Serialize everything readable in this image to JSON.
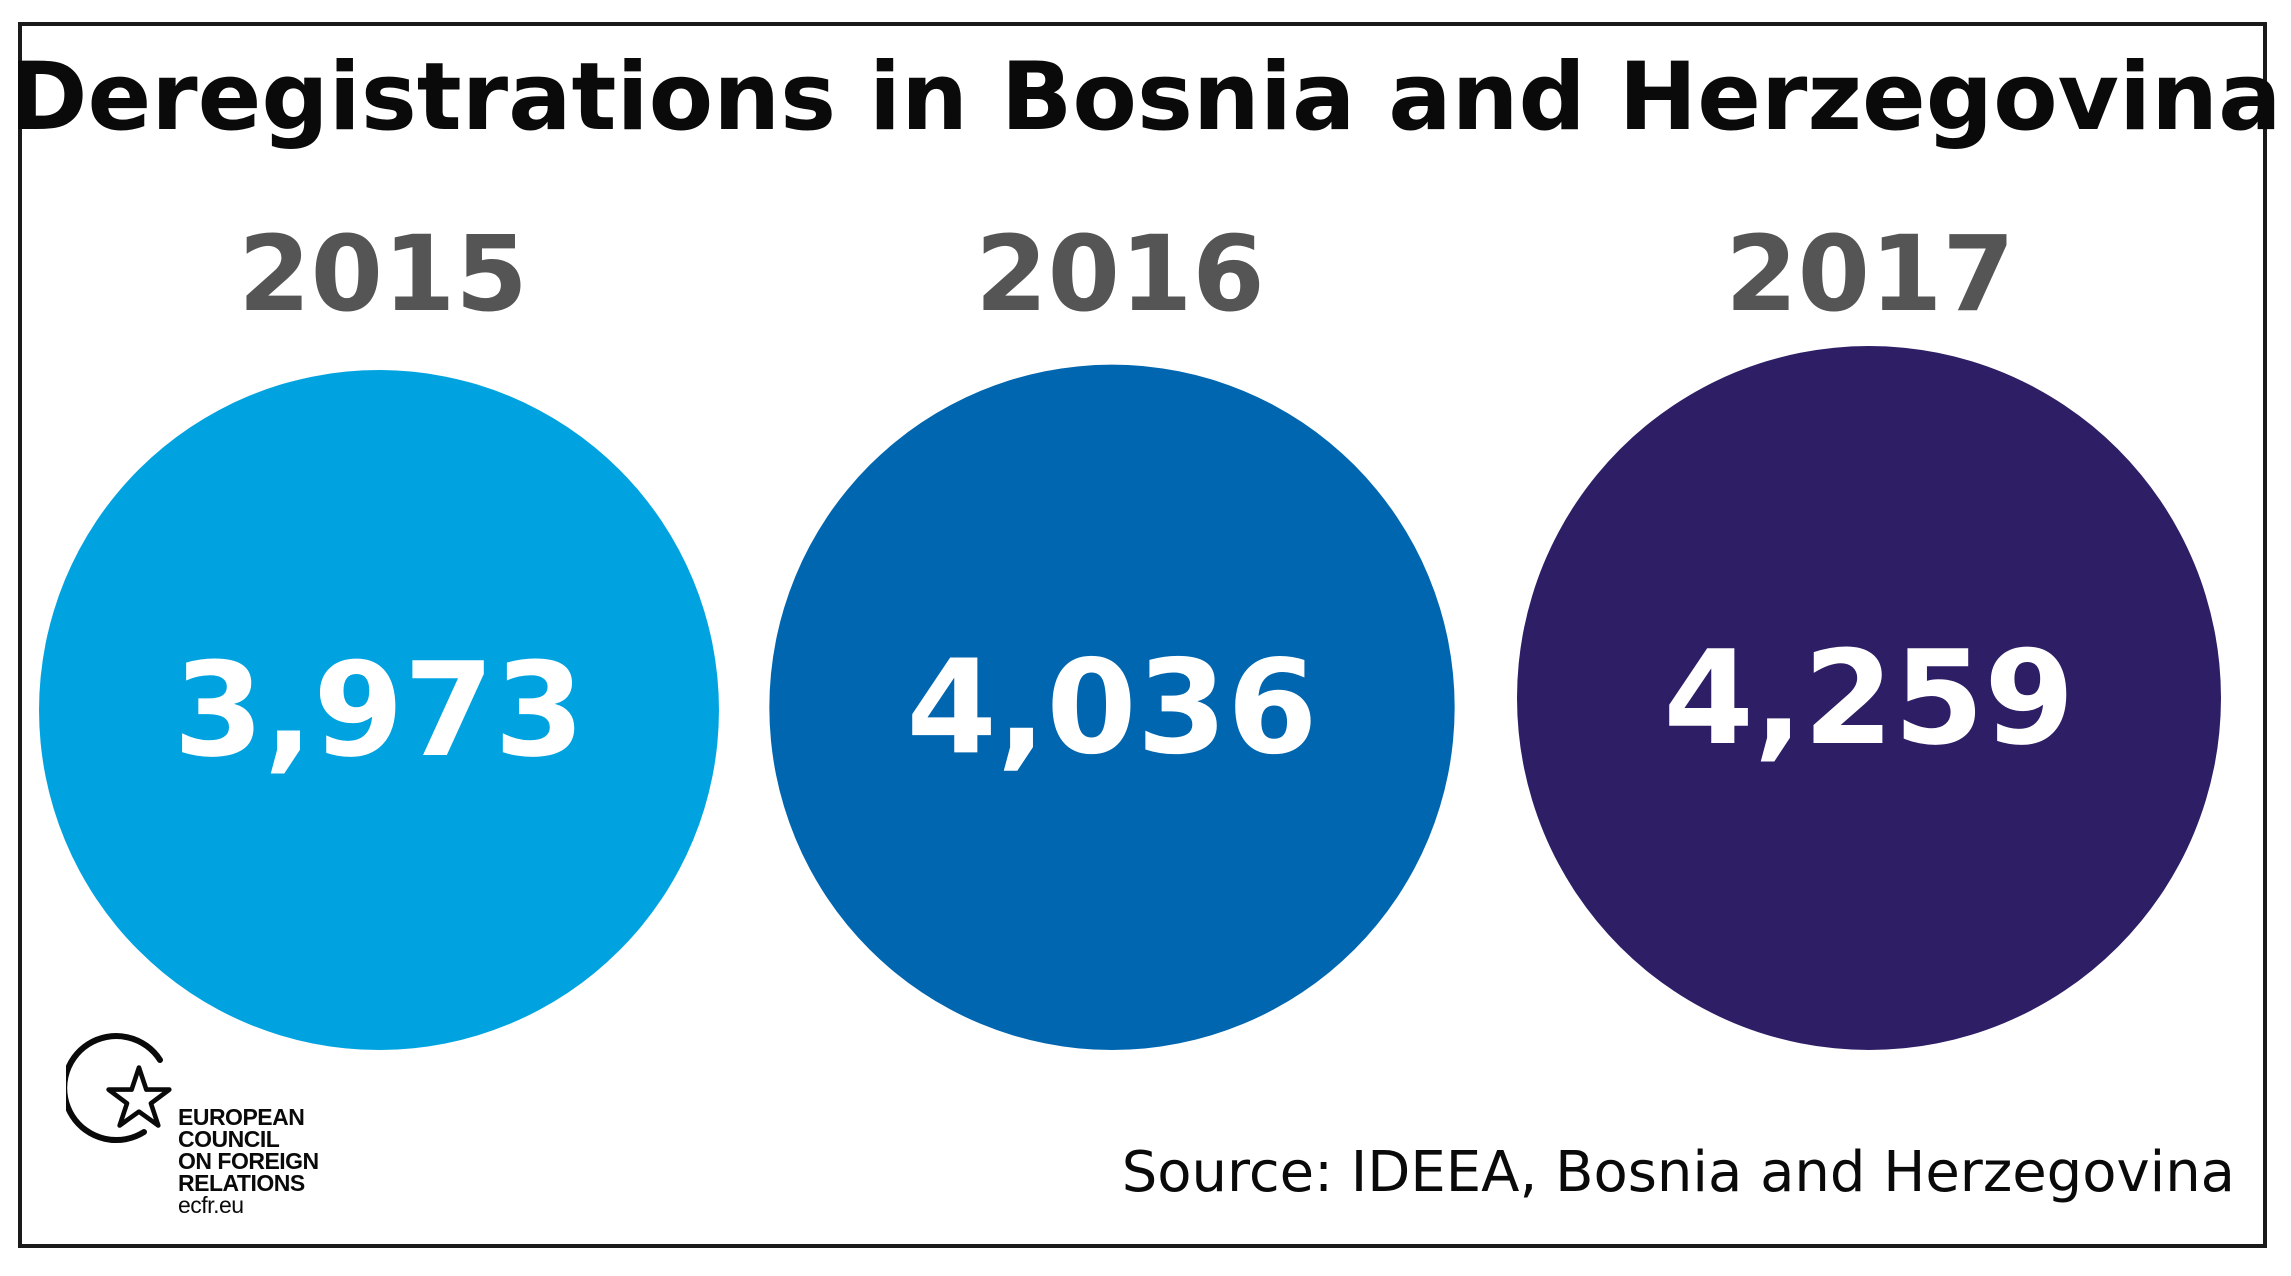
{
  "chart_data": {
    "type": "bubble",
    "title": "Deregistrations in Bosnia and Herzegovina",
    "categories": [
      "2015",
      "2016",
      "2017"
    ],
    "values": [
      3973,
      4036,
      4259
    ],
    "value_labels": [
      "3,973",
      "4,036",
      "4,259"
    ],
    "colors": [
      "#00a3e0",
      "#0066b0",
      "#2e1e66"
    ],
    "source": "Source: IDEEA, Bosnia and Herzegovina"
  },
  "logo": {
    "lines": [
      "EUROPEAN",
      "COUNCIL",
      "ON FOREIGN",
      "RELATIONS"
    ],
    "url": "ecfr.eu"
  }
}
